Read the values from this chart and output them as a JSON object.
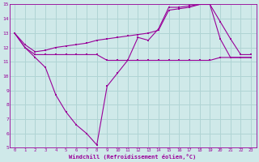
{
  "xlabel": "Windchill (Refroidissement éolien,°C)",
  "bg_color": "#cfe9e9",
  "grid_color": "#b0d4d4",
  "line_color": "#990099",
  "xlim": [
    -0.5,
    23.5
  ],
  "ylim": [
    5,
    15
  ],
  "xticks": [
    0,
    1,
    2,
    3,
    4,
    5,
    6,
    7,
    8,
    9,
    10,
    11,
    12,
    13,
    14,
    15,
    16,
    17,
    18,
    19,
    20,
    21,
    22,
    23
  ],
  "yticks": [
    5,
    6,
    7,
    8,
    9,
    10,
    11,
    12,
    13,
    14,
    15
  ],
  "line1_x": [
    0,
    1,
    2,
    3,
    4,
    5,
    6,
    7,
    8,
    9,
    10,
    11,
    12,
    13,
    14,
    15,
    16,
    17,
    18,
    19,
    20,
    21,
    22,
    23
  ],
  "line1_y": [
    13.0,
    12.0,
    11.3,
    10.6,
    8.7,
    7.5,
    6.6,
    6.0,
    5.2,
    9.3,
    10.2,
    11.1,
    12.7,
    12.5,
    13.3,
    14.8,
    14.8,
    14.9,
    15.0,
    15.0,
    12.6,
    11.3,
    11.3,
    11.3
  ],
  "line2_x": [
    0,
    1,
    2,
    3,
    4,
    5,
    6,
    7,
    8,
    9,
    10,
    11,
    12,
    13,
    14,
    15,
    16,
    17,
    18,
    19,
    20,
    21,
    22,
    23
  ],
  "line2_y": [
    13.0,
    12.0,
    11.5,
    11.5,
    11.5,
    11.5,
    11.5,
    11.5,
    11.5,
    11.1,
    11.1,
    11.1,
    11.1,
    11.1,
    11.1,
    11.1,
    11.1,
    11.1,
    11.1,
    11.1,
    11.3,
    11.3,
    11.3,
    11.3
  ],
  "line3_x": [
    0,
    1,
    2,
    3,
    4,
    5,
    6,
    7,
    8,
    9,
    10,
    11,
    12,
    13,
    14,
    15,
    16,
    17,
    18,
    19,
    20,
    21,
    22,
    23
  ],
  "line3_y": [
    13.0,
    12.2,
    11.7,
    11.8,
    12.0,
    12.1,
    12.2,
    12.3,
    12.5,
    12.6,
    12.7,
    12.8,
    12.9,
    13.0,
    13.2,
    14.6,
    14.7,
    14.8,
    15.0,
    15.0,
    13.8,
    12.6,
    11.5,
    11.5
  ]
}
